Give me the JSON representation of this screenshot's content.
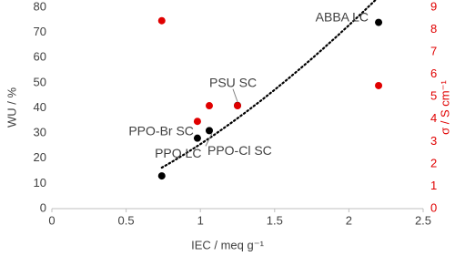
{
  "chart_data": {
    "type": "scatter",
    "xlabel": "IEC / meq g⁻¹",
    "ylabel": "WU / %",
    "y2label": "σ / S cm⁻¹",
    "xlim": [
      0,
      2.5
    ],
    "xticks": [
      0,
      0.5,
      1,
      1.5,
      2,
      2.5
    ],
    "ylim": [
      0,
      80
    ],
    "yticks": [
      0,
      10,
      20,
      30,
      40,
      50,
      60,
      70,
      80
    ],
    "y2lim": [
      0,
      9
    ],
    "y2ticks": [
      0,
      1,
      2,
      3,
      4,
      5,
      6,
      7,
      8,
      9
    ],
    "trendline": "power",
    "series": [
      {
        "color": "#000000",
        "x": [
          0.74,
          0.98,
          1.06,
          1.25,
          2.2
        ],
        "values": [
          13,
          28,
          31,
          41,
          74
        ],
        "point_labels": [
          "PPO LC",
          "PPO-Br SC",
          "PPO-Cl SC",
          "PSU SC",
          "ABBA LC"
        ]
      },
      {
        "color": "#e00000",
        "axis": "y2",
        "x": [
          0.74,
          0.98,
          1.06,
          1.25,
          2.2
        ],
        "values": [
          8.4,
          3.9,
          4.6,
          4.6,
          5.5
        ]
      }
    ]
  }
}
